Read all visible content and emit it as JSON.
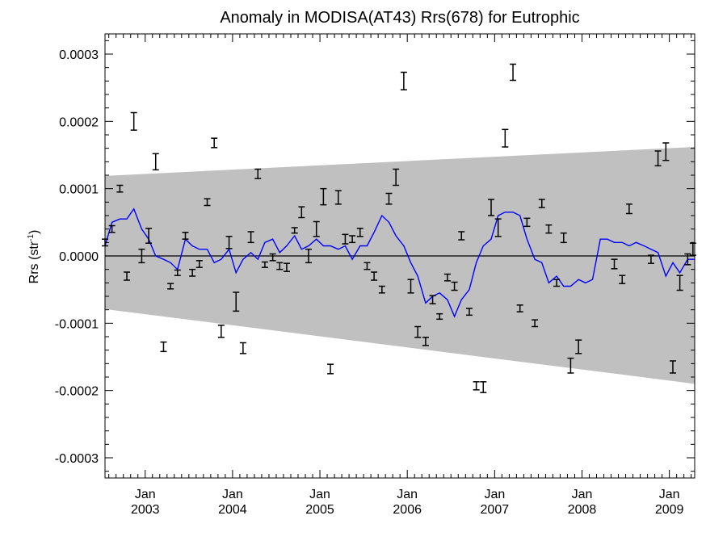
{
  "chart_data": {
    "type": "line",
    "title": "Anomaly in MODISA(AT43) Rrs(678) for Eutrophic",
    "ylabel": {
      "main": "Rrs (str",
      "sup": "-1",
      "end": ")"
    },
    "xlabel": "",
    "xlim": [
      2002.54,
      2009.29
    ],
    "ylim": [
      -0.00033,
      0.00033
    ],
    "y_ticks": [
      {
        "value": 0.0003,
        "label": "0.0003"
      },
      {
        "value": 0.0002,
        "label": "0.0002"
      },
      {
        "value": 0.0001,
        "label": "0.0001"
      },
      {
        "value": 0.0,
        "label": "0.0000"
      },
      {
        "value": -0.0001,
        "label": "-0.0001"
      },
      {
        "value": -0.0002,
        "label": "-0.0002"
      },
      {
        "value": -0.0003,
        "label": "-0.0003"
      }
    ],
    "x_ticks": [
      {
        "value": 2003.0,
        "label1": "Jan",
        "label2": "2003"
      },
      {
        "value": 2004.0,
        "label1": "Jan",
        "label2": "2004"
      },
      {
        "value": 2005.0,
        "label1": "Jan",
        "label2": "2005"
      },
      {
        "value": 2006.0,
        "label1": "Jan",
        "label2": "2006"
      },
      {
        "value": 2007.0,
        "label1": "Jan",
        "label2": "2007"
      },
      {
        "value": 2008.0,
        "label1": "Jan",
        "label2": "2008"
      },
      {
        "value": 2009.0,
        "label1": "Jan",
        "label2": "2009"
      }
    ],
    "colors": {
      "band": "#c0c0c0",
      "line": "#0000ff",
      "points": "#000000",
      "zero": "#000000"
    },
    "band": {
      "start": {
        "x": 2002.54,
        "upper": 0.000119,
        "lower": -7.9e-05
      },
      "end": {
        "x": 2009.29,
        "upper": 0.000162,
        "lower": -0.00019
      }
    },
    "line": [
      [
        2002.54,
        1.5e-05
      ],
      [
        2002.62,
        5e-05
      ],
      [
        2002.71,
        5.5e-05
      ],
      [
        2002.79,
        5.5e-05
      ],
      [
        2002.87,
        7e-05
      ],
      [
        2002.96,
        4e-05
      ],
      [
        2003.04,
        2.5e-05
      ],
      [
        2003.12,
        0.0
      ],
      [
        2003.21,
        -5e-06
      ],
      [
        2003.29,
        -1e-05
      ],
      [
        2003.37,
        -2e-05
      ],
      [
        2003.46,
        2.5e-05
      ],
      [
        2003.54,
        1.5e-05
      ],
      [
        2003.62,
        1e-05
      ],
      [
        2003.71,
        1e-05
      ],
      [
        2003.79,
        -1e-05
      ],
      [
        2003.87,
        -5e-06
      ],
      [
        2003.96,
        1e-05
      ],
      [
        2004.04,
        -2.5e-05
      ],
      [
        2004.12,
        -5e-06
      ],
      [
        2004.21,
        5e-06
      ],
      [
        2004.29,
        -5e-06
      ],
      [
        2004.37,
        2e-05
      ],
      [
        2004.46,
        2.5e-05
      ],
      [
        2004.54,
        5e-06
      ],
      [
        2004.62,
        1.5e-05
      ],
      [
        2004.71,
        3e-05
      ],
      [
        2004.79,
        1e-05
      ],
      [
        2004.87,
        1.5e-05
      ],
      [
        2004.96,
        2.5e-05
      ],
      [
        2005.04,
        1.5e-05
      ],
      [
        2005.12,
        1.5e-05
      ],
      [
        2005.21,
        1e-05
      ],
      [
        2005.29,
        1.5e-05
      ],
      [
        2005.37,
        -5e-06
      ],
      [
        2005.46,
        1.5e-05
      ],
      [
        2005.54,
        1.5e-05
      ],
      [
        2005.62,
        3.5e-05
      ],
      [
        2005.71,
        6e-05
      ],
      [
        2005.79,
        5e-05
      ],
      [
        2005.87,
        3e-05
      ],
      [
        2005.96,
        1.5e-05
      ],
      [
        2006.04,
        -1e-05
      ],
      [
        2006.12,
        -3e-05
      ],
      [
        2006.21,
        -7e-05
      ],
      [
        2006.29,
        -6e-05
      ],
      [
        2006.37,
        -5.5e-05
      ],
      [
        2006.46,
        -6.5e-05
      ],
      [
        2006.54,
        -9e-05
      ],
      [
        2006.62,
        -6.5e-05
      ],
      [
        2006.71,
        -5e-05
      ],
      [
        2006.79,
        -1e-05
      ],
      [
        2006.87,
        1.5e-05
      ],
      [
        2006.96,
        2.5e-05
      ],
      [
        2007.04,
        6e-05
      ],
      [
        2007.12,
        6.5e-05
      ],
      [
        2007.21,
        6.5e-05
      ],
      [
        2007.29,
        6e-05
      ],
      [
        2007.37,
        2.5e-05
      ],
      [
        2007.46,
        -5e-06
      ],
      [
        2007.54,
        -1e-05
      ],
      [
        2007.62,
        -4e-05
      ],
      [
        2007.71,
        -3e-05
      ],
      [
        2007.79,
        -4.5e-05
      ],
      [
        2007.87,
        -4.5e-05
      ],
      [
        2007.96,
        -3.5e-05
      ],
      [
        2008.04,
        -4e-05
      ],
      [
        2008.12,
        -3.5e-05
      ],
      [
        2008.21,
        2.5e-05
      ],
      [
        2008.29,
        2.5e-05
      ],
      [
        2008.37,
        2e-05
      ],
      [
        2008.46,
        2e-05
      ],
      [
        2008.54,
        1.5e-05
      ],
      [
        2008.62,
        2e-05
      ],
      [
        2008.71,
        1.5e-05
      ],
      [
        2008.79,
        1e-05
      ],
      [
        2008.87,
        5e-06
      ],
      [
        2008.96,
        -3e-05
      ],
      [
        2009.04,
        -1e-05
      ],
      [
        2009.12,
        -2.5e-05
      ],
      [
        2009.21,
        -5e-06
      ],
      [
        2009.29,
        -5e-06
      ]
    ],
    "points": [
      {
        "x": 2002.54,
        "y": 2e-05,
        "err": 5e-06
      },
      {
        "x": 2002.62,
        "y": 4e-05,
        "err": 5e-06
      },
      {
        "x": 2002.71,
        "y": 0.0001,
        "err": 5e-06
      },
      {
        "x": 2002.79,
        "y": -3e-05,
        "err": 6e-06
      },
      {
        "x": 2002.87,
        "y": 0.0002,
        "err": 1.3e-05
      },
      {
        "x": 2002.96,
        "y": 0.0,
        "err": 1e-05
      },
      {
        "x": 2003.04,
        "y": 3e-05,
        "err": 1.1e-05
      },
      {
        "x": 2003.12,
        "y": 0.00014,
        "err": 1.2e-05
      },
      {
        "x": 2003.21,
        "y": -0.000135,
        "err": 7e-06
      },
      {
        "x": 2003.29,
        "y": -4.5e-05,
        "err": 4e-06
      },
      {
        "x": 2003.37,
        "y": -2.5e-05,
        "err": 4e-06
      },
      {
        "x": 2003.46,
        "y": 3e-05,
        "err": 5e-06
      },
      {
        "x": 2003.54,
        "y": -2.5e-05,
        "err": 5e-06
      },
      {
        "x": 2003.62,
        "y": -1.2e-05,
        "err": 5e-06
      },
      {
        "x": 2003.71,
        "y": 8e-05,
        "err": 5e-06
      },
      {
        "x": 2003.79,
        "y": 0.000168,
        "err": 7e-06
      },
      {
        "x": 2003.87,
        "y": -0.000112,
        "err": 9e-06
      },
      {
        "x": 2003.96,
        "y": 2e-05,
        "err": 9e-06
      },
      {
        "x": 2004.04,
        "y": -6.8e-05,
        "err": 1.4e-05
      },
      {
        "x": 2004.12,
        "y": -0.000137,
        "err": 8e-06
      },
      {
        "x": 2004.21,
        "y": 2.8e-05,
        "err": 8e-06
      },
      {
        "x": 2004.29,
        "y": 0.000122,
        "err": 7e-06
      },
      {
        "x": 2004.37,
        "y": -1.3e-05,
        "err": 4e-06
      },
      {
        "x": 2004.46,
        "y": -2e-06,
        "err": 5e-06
      },
      {
        "x": 2004.54,
        "y": -1.5e-05,
        "err": 5e-06
      },
      {
        "x": 2004.62,
        "y": -1.7e-05,
        "err": 6e-06
      },
      {
        "x": 2004.71,
        "y": 3.8e-05,
        "err": 4e-06
      },
      {
        "x": 2004.79,
        "y": 6.5e-05,
        "err": 8e-06
      },
      {
        "x": 2004.87,
        "y": 0.0,
        "err": 1e-05
      },
      {
        "x": 2004.96,
        "y": 4e-05,
        "err": 1.1e-05
      },
      {
        "x": 2005.04,
        "y": 8.8e-05,
        "err": 1.2e-05
      },
      {
        "x": 2005.12,
        "y": -0.000168,
        "err": 7e-06
      },
      {
        "x": 2005.21,
        "y": 8.7e-05,
        "err": 1e-05
      },
      {
        "x": 2005.29,
        "y": 2.5e-05,
        "err": 7e-06
      },
      {
        "x": 2005.37,
        "y": 2.5e-05,
        "err": 5e-06
      },
      {
        "x": 2005.46,
        "y": 3.5e-05,
        "err": 6e-06
      },
      {
        "x": 2005.54,
        "y": -1.5e-05,
        "err": 5e-06
      },
      {
        "x": 2005.62,
        "y": -3e-05,
        "err": 6e-06
      },
      {
        "x": 2005.71,
        "y": -5e-05,
        "err": 5e-06
      },
      {
        "x": 2005.79,
        "y": 8.5e-05,
        "err": 8e-06
      },
      {
        "x": 2005.87,
        "y": 0.000117,
        "err": 1.2e-05
      },
      {
        "x": 2005.96,
        "y": 0.00026,
        "err": 1.3e-05
      },
      {
        "x": 2006.04,
        "y": -4.5e-05,
        "err": 1e-05
      },
      {
        "x": 2006.12,
        "y": -0.000113,
        "err": 8e-06
      },
      {
        "x": 2006.21,
        "y": -0.000127,
        "err": 6e-06
      },
      {
        "x": 2006.29,
        "y": -6.5e-05,
        "err": 6e-06
      },
      {
        "x": 2006.37,
        "y": -9e-05,
        "err": 4e-06
      },
      {
        "x": 2006.46,
        "y": -3.2e-05,
        "err": 5e-06
      },
      {
        "x": 2006.54,
        "y": -4.5e-05,
        "err": 6e-06
      },
      {
        "x": 2006.62,
        "y": 3e-05,
        "err": 6e-06
      },
      {
        "x": 2006.71,
        "y": -8.3e-05,
        "err": 5e-06
      },
      {
        "x": 2006.79,
        "y": -0.000193,
        "err": 6e-06
      },
      {
        "x": 2006.87,
        "y": -0.000195,
        "err": 8e-06
      },
      {
        "x": 2006.96,
        "y": 7.2e-05,
        "err": 1.2e-05
      },
      {
        "x": 2007.04,
        "y": 4.2e-05,
        "err": 1.3e-05
      },
      {
        "x": 2007.12,
        "y": 0.000175,
        "err": 1.3e-05
      },
      {
        "x": 2007.21,
        "y": 0.000273,
        "err": 1.2e-05
      },
      {
        "x": 2007.29,
        "y": -7.8e-05,
        "err": 5e-06
      },
      {
        "x": 2007.37,
        "y": 5e-05,
        "err": 6e-06
      },
      {
        "x": 2007.46,
        "y": -0.0001,
        "err": 5e-06
      },
      {
        "x": 2007.54,
        "y": 7.8e-05,
        "err": 6e-06
      },
      {
        "x": 2007.62,
        "y": 4e-05,
        "err": 6e-06
      },
      {
        "x": 2007.71,
        "y": -4e-05,
        "err": 5e-06
      },
      {
        "x": 2007.79,
        "y": 2.7e-05,
        "err": 7e-06
      },
      {
        "x": 2007.87,
        "y": -0.000163,
        "err": 1.1e-05
      },
      {
        "x": 2007.96,
        "y": -0.000135,
        "err": 1e-05
      },
      {
        "x": 2008.37,
        "y": -1.2e-05,
        "err": 7e-06
      },
      {
        "x": 2008.46,
        "y": -3.5e-05,
        "err": 6e-06
      },
      {
        "x": 2008.54,
        "y": 7e-05,
        "err": 7e-06
      },
      {
        "x": 2008.79,
        "y": -5e-06,
        "err": 6e-06
      },
      {
        "x": 2008.87,
        "y": 0.000145,
        "err": 1.1e-05
      },
      {
        "x": 2008.96,
        "y": 0.000155,
        "err": 1.3e-05
      },
      {
        "x": 2009.04,
        "y": -0.000165,
        "err": 9e-06
      },
      {
        "x": 2009.12,
        "y": -4e-05,
        "err": 1.1e-05
      },
      {
        "x": 2009.21,
        "y": -5e-06,
        "err": 8e-06
      },
      {
        "x": 2009.27,
        "y": 1e-05,
        "err": 9e-06
      }
    ]
  }
}
